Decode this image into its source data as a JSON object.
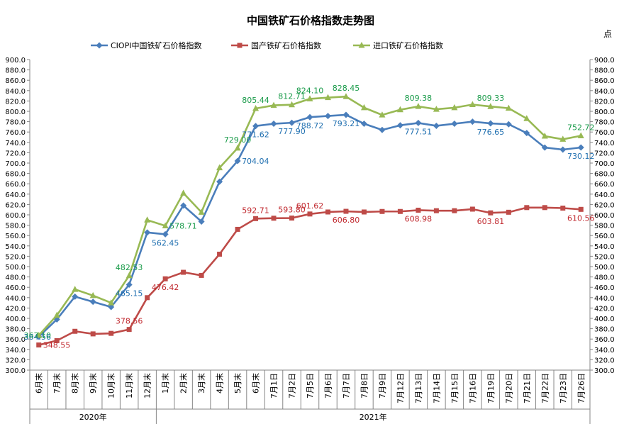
{
  "chart_data": {
    "type": "line",
    "title": "中国铁矿石价格指数走势图",
    "unit_label": "点",
    "ylim": [
      300,
      900
    ],
    "y_tick_step": 20,
    "grid": false,
    "legend_position": "top",
    "categories": [
      "6月末",
      "7月末",
      "8月末",
      "9月末",
      "10月末",
      "11月末",
      "12月末",
      "1月末",
      "2月末",
      "3月末",
      "4月末",
      "5月末",
      "6月末",
      "7月1日",
      "7月2日",
      "7月5日",
      "7月6日",
      "7月7日",
      "7月8日",
      "7月9日",
      "7月12日",
      "7月13日",
      "7月14日",
      "7月15日",
      "7月16日",
      "7月19日",
      "7月20日",
      "7月21日",
      "7月22日",
      "7月23日",
      "7月26日"
    ],
    "year_groups": [
      {
        "label": "2020年",
        "start": 0,
        "end": 6
      },
      {
        "label": "2021年",
        "start": 7,
        "end": 30
      }
    ],
    "series": [
      {
        "name": "CIOPI中国铁矿石价格指数",
        "color": "#4a7ebb",
        "label_color": "#1f6fb0",
        "marker": "diamond",
        "values": [
          364.56,
          398,
          442,
          432,
          422,
          465.15,
          566,
          562.45,
          618,
          587,
          664,
          704.04,
          771.62,
          776,
          777.9,
          788.72,
          791,
          793.21,
          776,
          764,
          773,
          777.51,
          772,
          776,
          780,
          776.65,
          775,
          758,
          730,
          726,
          730.12
        ],
        "labels": [
          {
            "i": 0,
            "text": "364.56",
            "pos": "left"
          },
          {
            "i": 5,
            "text": "465.15",
            "pos": "below"
          },
          {
            "i": 7,
            "text": "562.45",
            "pos": "below"
          },
          {
            "i": 11,
            "text": "704.04",
            "pos": "right"
          },
          {
            "i": 12,
            "text": "771.62",
            "pos": "below"
          },
          {
            "i": 14,
            "text": "777.90",
            "pos": "below"
          },
          {
            "i": 15,
            "text": "788.72",
            "pos": "below"
          },
          {
            "i": 17,
            "text": "793.21",
            "pos": "below"
          },
          {
            "i": 21,
            "text": "777.51",
            "pos": "below"
          },
          {
            "i": 25,
            "text": "776.65",
            "pos": "below"
          },
          {
            "i": 30,
            "text": "730.12",
            "pos": "below"
          }
        ]
      },
      {
        "name": "国产铁矿石价格指数",
        "color": "#be4b48",
        "label_color": "#c0272d",
        "marker": "square",
        "values": [
          348.55,
          357,
          375,
          370,
          371,
          378.56,
          440,
          476.42,
          489,
          483,
          524,
          572,
          592.71,
          593.5,
          593.8,
          601.62,
          605.5,
          606.8,
          605.5,
          606.5,
          606.5,
          608.98,
          608,
          608,
          611,
          603.81,
          605,
          614,
          614,
          613,
          610.56
        ],
        "labels": [
          {
            "i": 0,
            "text": "348.55",
            "pos": "right"
          },
          {
            "i": 5,
            "text": "378.56",
            "pos": "above"
          },
          {
            "i": 7,
            "text": "476.42",
            "pos": "below"
          },
          {
            "i": 12,
            "text": "592.71",
            "pos": "above"
          },
          {
            "i": 14,
            "text": "593.80",
            "pos": "above"
          },
          {
            "i": 15,
            "text": "601.62",
            "pos": "above"
          },
          {
            "i": 17,
            "text": "606.80",
            "pos": "below"
          },
          {
            "i": 21,
            "text": "608.98",
            "pos": "below"
          },
          {
            "i": 25,
            "text": "603.81",
            "pos": "below"
          },
          {
            "i": 30,
            "text": "610.56",
            "pos": "below"
          }
        ]
      },
      {
        "name": "进口铁矿石价格指数",
        "color": "#98b954",
        "label_color": "#1a9b4a",
        "marker": "triangle",
        "values": [
          367.1,
          406,
          456,
          444,
          430,
          482.53,
          590,
          578.71,
          642,
          605,
          691,
          729.0,
          805.44,
          811.5,
          812.71,
          824.1,
          826.5,
          828.45,
          807,
          793,
          803,
          809.38,
          804,
          807,
          813,
          809.33,
          806,
          786,
          752,
          746,
          752.72
        ],
        "labels": [
          {
            "i": 0,
            "text": "367.10",
            "pos": "left"
          },
          {
            "i": 5,
            "text": "482.53",
            "pos": "above"
          },
          {
            "i": 7,
            "text": "578.71",
            "pos": "right"
          },
          {
            "i": 11,
            "text": "729.00",
            "pos": "above"
          },
          {
            "i": 12,
            "text": "805.44",
            "pos": "above"
          },
          {
            "i": 14,
            "text": "812.71",
            "pos": "above"
          },
          {
            "i": 15,
            "text": "824.10",
            "pos": "above"
          },
          {
            "i": 17,
            "text": "828.45",
            "pos": "above"
          },
          {
            "i": 21,
            "text": "809.38",
            "pos": "above"
          },
          {
            "i": 25,
            "text": "809.33",
            "pos": "above"
          },
          {
            "i": 30,
            "text": "752.72",
            "pos": "above"
          }
        ]
      }
    ]
  }
}
